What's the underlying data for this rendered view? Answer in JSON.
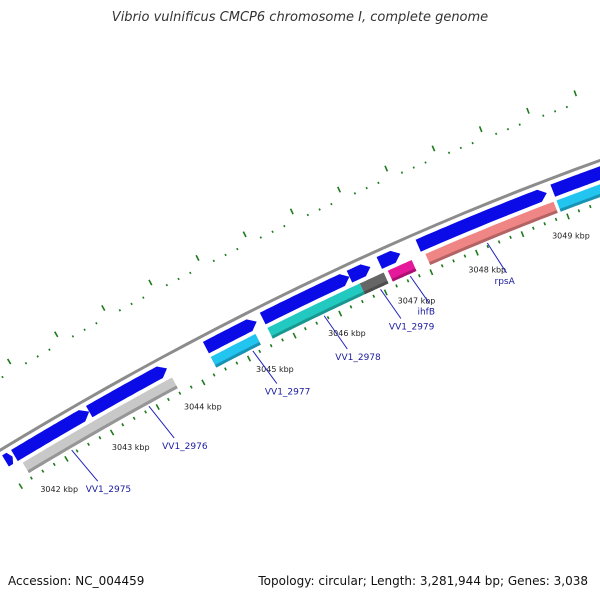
{
  "title": "Vibrio vulnificus CMCP6 chromosome I, complete genome",
  "footer": {
    "accession": "Accession: NC_004459",
    "summary": "Topology: circular; Length: 3,281,944 bp; Genes: 3,038"
  },
  "colors": {
    "backbone": "#8c8c8c",
    "forward_cds": "#0b0be8",
    "cyan": "#22c4f0",
    "teal": "#22c9c0",
    "gray": "#c8c8c8",
    "darkgray": "#666666",
    "magenta": "#e5179a",
    "salmon": "#ef8585",
    "tick": "#1d7a1d",
    "label_line": "#2222bb"
  },
  "kbp_ticks": [
    {
      "label": "3042 kbp",
      "pos": 0.02
    },
    {
      "label": "3043 kbp",
      "pos": 0.141
    },
    {
      "label": "3044 kbp",
      "pos": 0.263
    },
    {
      "label": "3045 kbp",
      "pos": 0.385
    },
    {
      "label": "3046 kbp",
      "pos": 0.507
    },
    {
      "label": "3047 kbp",
      "pos": 0.625
    },
    {
      "label": "3048 kbp",
      "pos": 0.745
    },
    {
      "label": "3049 kbp",
      "pos": 0.887
    }
  ],
  "genes": [
    {
      "name": "VV1_2975",
      "ring": "inner",
      "color": "gray",
      "start": 0.02,
      "end": 0.27,
      "label_pos": 0.09
    },
    {
      "name": "VV1_2976",
      "ring": "inner",
      "color": "gray",
      "start": 0.02,
      "end": 0.27,
      "label_pos": 0.22
    },
    {
      "name": "VV1_2977",
      "ring": "inner",
      "color": "cyan",
      "start": 0.335,
      "end": 0.41,
      "label_pos": 0.395
    },
    {
      "name": "VV1_2978",
      "ring": "inner",
      "color": "teal",
      "start": 0.43,
      "end": 0.585,
      "label_pos": 0.515
    },
    {
      "name": "VV1_2979",
      "ring": "inner",
      "color": "darkgray",
      "start": 0.585,
      "end": 0.625,
      "label_pos": 0.61
    },
    {
      "name": "ihfB",
      "ring": "inner",
      "color": "magenta",
      "start": 0.632,
      "end": 0.672,
      "label_pos": 0.66
    },
    {
      "name": "rpsA",
      "ring": "inner",
      "color": "salmon",
      "start": 0.695,
      "end": 0.91,
      "label_pos": 0.79
    },
    {
      "name": "",
      "ring": "inner",
      "color": "cyan",
      "start": 0.915,
      "end": 1.02,
      "label_pos": null
    }
  ],
  "outer_features": [
    {
      "start": 0.0,
      "end": 0.012
    },
    {
      "start": 0.015,
      "end": 0.14
    },
    {
      "start": 0.14,
      "end": 0.27
    },
    {
      "start": 0.335,
      "end": 0.42
    },
    {
      "start": 0.43,
      "end": 0.575
    },
    {
      "start": 0.575,
      "end": 0.61
    },
    {
      "start": 0.625,
      "end": 0.66
    },
    {
      "start": 0.69,
      "end": 0.905
    },
    {
      "start": 0.915,
      "end": 1.02
    }
  ]
}
